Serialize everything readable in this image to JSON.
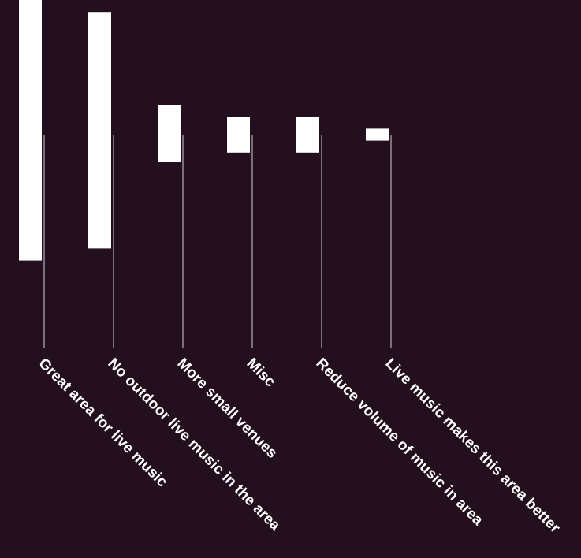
{
  "chart_data": {
    "type": "bar",
    "categories": [
      "Great area for live music",
      "No outdoor live music in the area",
      "More small venues",
      "Misc",
      "Reduce volume of music in area",
      "Live music makes this area better"
    ],
    "values": [
      {
        "low": -0.42,
        "high": 0.46
      },
      {
        "low": -0.38,
        "high": 0.41
      },
      {
        "low": -0.09,
        "high": 0.1
      },
      {
        "low": -0.06,
        "high": 0.06
      },
      {
        "low": -0.06,
        "high": 0.06
      },
      {
        "low": -0.02,
        "high": 0.02
      }
    ],
    "colors": {
      "background": "#230f1d",
      "bar": "#ffffff",
      "stem": "#9b8f98",
      "label": "#ffffff"
    },
    "grid": false,
    "legend": "none"
  }
}
